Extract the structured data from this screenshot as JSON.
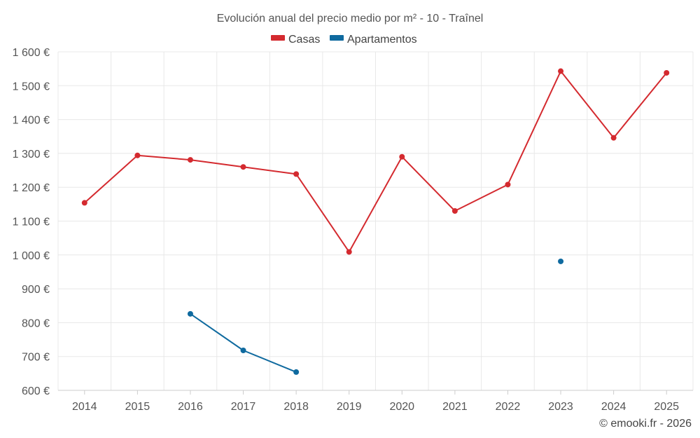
{
  "chart_data": {
    "type": "line",
    "title": "Evolución anual del precio medio por m² - 10 - Traînel",
    "categories": [
      "2014",
      "2015",
      "2016",
      "2017",
      "2018",
      "2019",
      "2020",
      "2021",
      "2022",
      "2023",
      "2024",
      "2025"
    ],
    "ylim": [
      600,
      1600
    ],
    "yticks": [
      600,
      700,
      800,
      900,
      1000,
      1100,
      1200,
      1300,
      1400,
      1500,
      1600
    ],
    "ytick_labels": [
      "600 €",
      "700 €",
      "800 €",
      "900 €",
      "1 000 €",
      "1 100 €",
      "1 200 €",
      "1 300 €",
      "1 400 €",
      "1 500 €",
      "1 600 €"
    ],
    "xlabel": "",
    "ylabel": "",
    "grid": true,
    "legend_position": "top-center",
    "series": [
      {
        "name": "Casas",
        "color": "#d42a2f",
        "values": [
          1154,
          1294,
          1281,
          1260,
          1239,
          1009,
          1290,
          1130,
          1208,
          1543,
          1346,
          1538
        ]
      },
      {
        "name": "Apartamentos",
        "color": "#0f6a9f",
        "values": [
          null,
          null,
          826,
          718,
          654,
          null,
          null,
          null,
          null,
          981,
          null,
          null
        ]
      }
    ]
  },
  "credit": "© emooki.fr - 2026"
}
